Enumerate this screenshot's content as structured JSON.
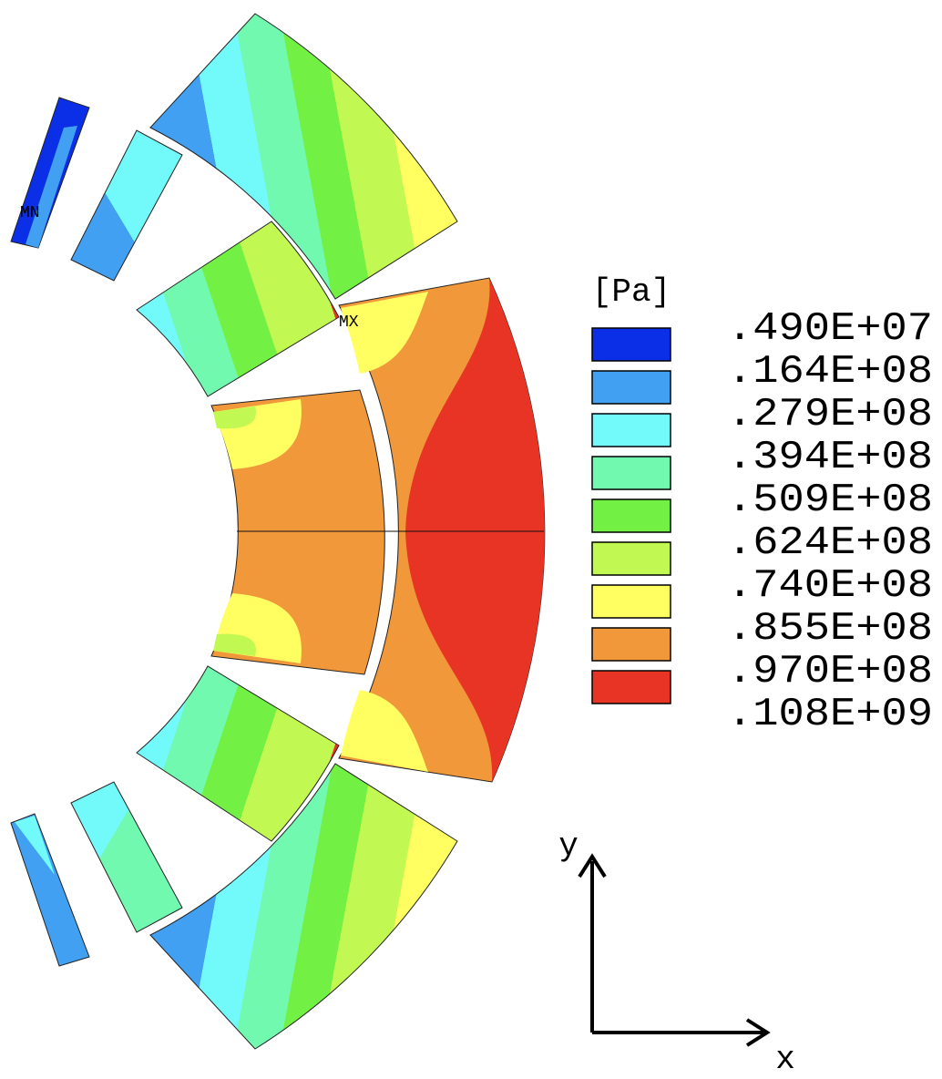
{
  "legend": {
    "unit": "[Pa]",
    "labels": [
      ".490E+07",
      ".164E+08",
      ".279E+08",
      ".394E+08",
      ".509E+08",
      ".624E+08",
      ".740E+08",
      ".855E+08",
      ".970E+08",
      ".108E+09"
    ],
    "colors": [
      "#0b2fe6",
      "#41a0f2",
      "#72f9f9",
      "#72f9b0",
      "#72f044",
      "#c2f852",
      "#ffff62",
      "#f0983a",
      "#e83424"
    ]
  },
  "markers": {
    "min": "MN",
    "max": "MX"
  },
  "axes": {
    "y": "y",
    "x": "x"
  }
}
